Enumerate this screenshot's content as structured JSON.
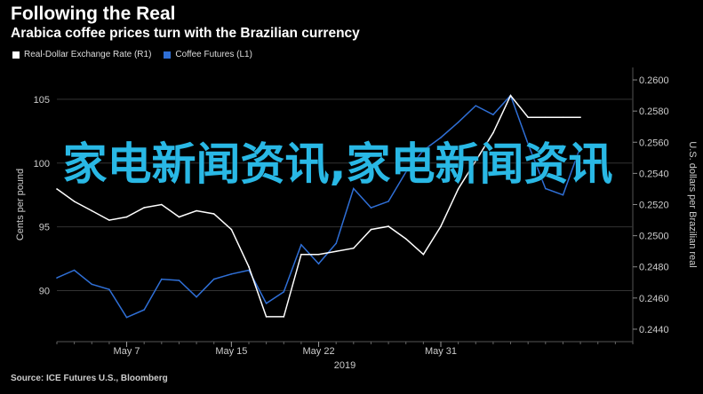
{
  "title": "Following the Real",
  "subtitle": "Arabica coffee prices turn with the Brazilian currency",
  "legend": [
    {
      "name": "Real-Dollar Exchange Rate (R1)",
      "color": "#ffffff"
    },
    {
      "name": "Coffee Futures (L1)",
      "color": "#2f6fd6"
    }
  ],
  "source": "Source: ICE Futures U.S., Bloomberg",
  "overlay_text": "家电新闻资讯,家电新闻资讯",
  "chart_data": {
    "type": "line",
    "title": "Following the Real",
    "subtitle": "Arabica coffee prices turn with the Brazilian currency",
    "x_ticks": [
      "May 7",
      "May 15",
      "May 22",
      "May 31"
    ],
    "x_year_label": "2019",
    "y_left": {
      "label": "Cents per pound",
      "ticks": [
        90,
        95,
        100,
        105
      ],
      "lim": [
        86,
        107.5
      ]
    },
    "y_right": {
      "label": "U.S. dollars per Brazilian real",
      "ticks": [
        "0.2440",
        "0.2460",
        "0.2480",
        "0.2500",
        "0.2520",
        "0.2540",
        "0.2560",
        "0.2580",
        "0.2600"
      ],
      "lim": [
        0.2432,
        0.2608
      ]
    },
    "x_range": [
      1,
      34
    ],
    "series": [
      {
        "name": "Coffee Futures (L1)",
        "axis": "left",
        "color": "#2f6fd6",
        "x": [
          1,
          2,
          3,
          4,
          5,
          6,
          7,
          8,
          9,
          10,
          11,
          12,
          13,
          14,
          15,
          16,
          17,
          18,
          19,
          20,
          21,
          22,
          23,
          24,
          25,
          26,
          27,
          28,
          29,
          30,
          31
        ],
        "y": [
          91.0,
          91.6,
          90.5,
          90.1,
          87.9,
          88.5,
          90.9,
          90.8,
          89.5,
          90.9,
          91.3,
          91.6,
          89.0,
          89.9,
          93.6,
          92.1,
          93.7,
          98.0,
          96.5,
          97.0,
          99.3,
          101.0,
          102.0,
          103.2,
          104.5,
          103.8,
          105.3,
          101.5,
          98.0,
          97.5,
          101.3
        ]
      },
      {
        "name": "Real-Dollar Exchange Rate (R1)",
        "axis": "right",
        "color": "#ffffff",
        "x": [
          1,
          2,
          3,
          4,
          5,
          6,
          7,
          8,
          9,
          10,
          11,
          12,
          13,
          14,
          15,
          16,
          17,
          18,
          19,
          20,
          21,
          22,
          23,
          24,
          25,
          26,
          27,
          28,
          29,
          30,
          31
        ],
        "y": [
          0.253,
          0.2522,
          0.2516,
          0.251,
          0.2512,
          0.2518,
          0.252,
          0.2512,
          0.2516,
          0.2514,
          0.2504,
          0.248,
          0.2448,
          0.2448,
          0.2488,
          0.2488,
          0.249,
          0.2492,
          0.2504,
          0.2506,
          0.2498,
          0.2488,
          0.2506,
          0.253,
          0.2548,
          0.2566,
          0.259,
          0.2576,
          0.2576,
          0.2576,
          0.2576
        ]
      }
    ],
    "grid": true
  }
}
